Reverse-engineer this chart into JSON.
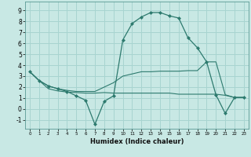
{
  "bg_color": "#c8e8e4",
  "grid_color": "#a8d4d0",
  "line_color": "#2d7a6e",
  "xlabel": "Humidex (Indice chaleur)",
  "xlim": [
    -0.5,
    23.5
  ],
  "ylim": [
    -1.8,
    9.8
  ],
  "xticks": [
    0,
    1,
    2,
    3,
    4,
    5,
    6,
    7,
    8,
    9,
    10,
    11,
    12,
    13,
    14,
    15,
    16,
    17,
    18,
    19,
    20,
    21,
    22,
    23
  ],
  "yticks": [
    -1,
    0,
    1,
    2,
    3,
    4,
    5,
    6,
    7,
    8,
    9
  ],
  "line1_x": [
    0,
    1,
    2,
    3,
    4,
    5,
    6,
    7,
    8,
    9,
    10,
    11,
    12,
    13,
    14,
    15,
    16,
    17,
    18,
    19,
    20,
    21,
    22,
    23
  ],
  "line1_y": [
    3.4,
    2.6,
    1.85,
    1.65,
    1.55,
    1.5,
    1.45,
    1.45,
    1.5,
    1.45,
    1.45,
    1.45,
    1.45,
    1.45,
    1.45,
    1.45,
    1.35,
    1.35,
    1.35,
    1.35,
    1.35,
    1.25,
    1.05,
    1.05
  ],
  "line2_x": [
    0,
    1,
    2,
    3,
    4,
    5,
    6,
    7,
    8,
    9,
    10,
    11,
    12,
    13,
    14,
    15,
    16,
    17,
    18,
    19,
    20,
    21,
    22,
    23
  ],
  "line2_y": [
    3.4,
    2.6,
    2.1,
    1.85,
    1.7,
    1.6,
    1.6,
    1.6,
    2.0,
    2.4,
    3.0,
    3.2,
    3.4,
    3.4,
    3.45,
    3.45,
    3.45,
    3.5,
    3.5,
    4.3,
    4.3,
    1.3,
    1.05,
    1.05
  ],
  "line3_x": [
    0,
    1,
    2,
    3,
    4,
    5,
    6,
    7,
    8,
    9,
    10,
    11,
    12,
    13,
    14,
    15,
    16,
    17,
    18,
    19,
    20,
    21,
    22,
    23
  ],
  "line3_y": [
    3.4,
    2.6,
    2.1,
    1.85,
    1.6,
    1.2,
    0.8,
    -1.4,
    0.7,
    1.2,
    6.3,
    7.8,
    8.4,
    8.8,
    8.8,
    8.5,
    8.3,
    6.5,
    5.6,
    4.3,
    1.3,
    -0.4,
    1.05,
    1.05
  ]
}
